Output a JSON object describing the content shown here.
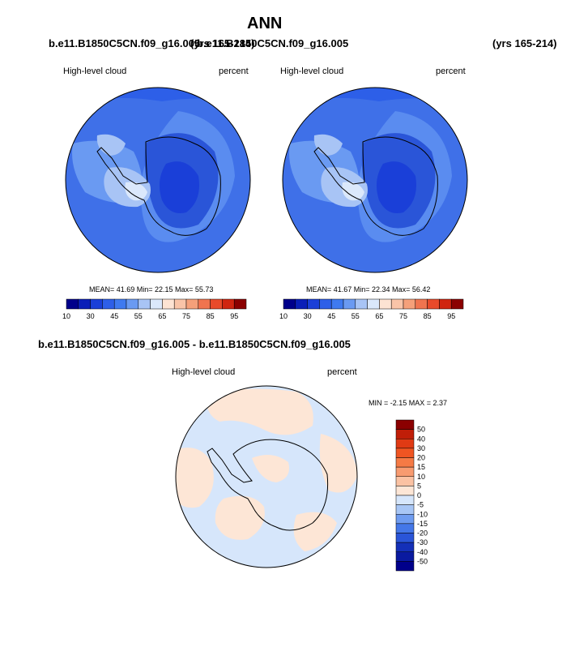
{
  "page_title": "ANN",
  "header_case1": "b.e11.B1850C5CN.f09_g16.005",
  "header_case1_years": "(yrs 165-214)",
  "header_case2": "b.e11.B1850C5CN.f09_g16.005",
  "header_case2_years": "(yrs 165-214)",
  "diff_title": "b.e11.B1850C5CN.f09_g16.005 - b.e11.B1850C5CN.f09_g16.005",
  "panels": [
    {
      "variable": "High-level cloud",
      "units": "percent",
      "stats": "MEAN=  41.69  Min=  22.15  Max=  55.73"
    },
    {
      "variable": "High-level cloud",
      "units": "percent",
      "stats": "MEAN=  41.67  Min=  22.34  Max=  56.42"
    }
  ],
  "diff_panel": {
    "variable": "High-level cloud",
    "units": "percent",
    "stats": "MIN =  -2.15 MAX =   2.37"
  },
  "abs_colorbar": {
    "labels": [
      "10",
      "30",
      "45",
      "55",
      "65",
      "75",
      "85",
      "95"
    ],
    "colors": [
      "#00008b",
      "#0a1fb8",
      "#1a3fd8",
      "#2d5fe8",
      "#3f7af0",
      "#6a9af2",
      "#a8c4f5",
      "#dbe8fb",
      "#fde3d3",
      "#f9c4a8",
      "#f5a07a",
      "#f0744f",
      "#e84a2a",
      "#d02510",
      "#8b0000"
    ]
  },
  "diff_colorbar": {
    "labels": [
      "50",
      "40",
      "30",
      "20",
      "15",
      "10",
      "5",
      "0",
      "-5",
      "-10",
      "-15",
      "-20",
      "-30",
      "-40",
      "-50"
    ],
    "colors": [
      "#8b0000",
      "#c01e08",
      "#e03a14",
      "#ef5522",
      "#f57a45",
      "#f89b70",
      "#fbc2a3",
      "#fde6d6",
      "#d6e6fb",
      "#a8c6f5",
      "#6f9cf0",
      "#4477e8",
      "#2a55d8",
      "#1430b8",
      "#0a1aa0",
      "#00008b"
    ]
  },
  "map_colors": {
    "ocean": "#3f70e8",
    "interior": "#2a55d8",
    "peninsula": "#bcd2f7",
    "diff_blue": "#d6e6fb",
    "diff_peach": "#fde6d6"
  }
}
